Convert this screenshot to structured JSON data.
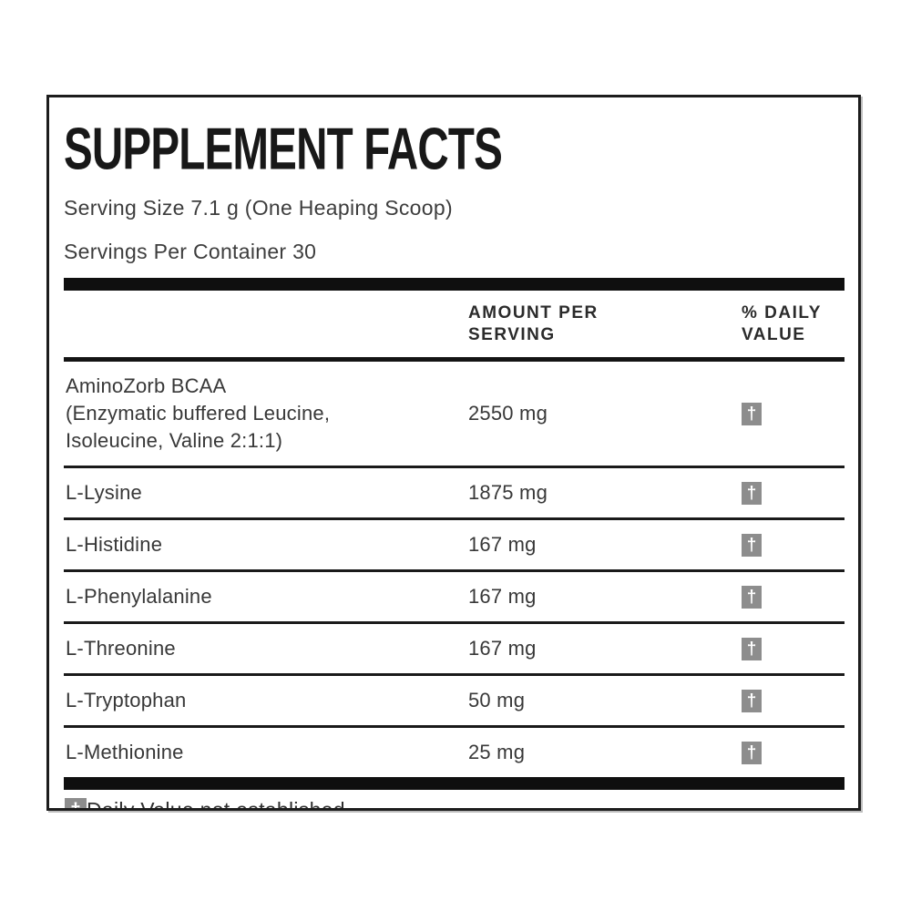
{
  "panel": {
    "title": "SUPPLEMENT FACTS",
    "serving_size": "Serving Size 7.1 g (One Heaping Scoop)",
    "servings_per_container": "Servings Per Container 30",
    "columns": {
      "amount": "AMOUNT PER\nSERVING",
      "daily_value": "% DAILY\nVALUE"
    },
    "dagger": "†",
    "footnote": "Daily Value not established.",
    "colors": {
      "text": "#3a3a3a",
      "bars": "#0f0f0f",
      "dagger_box": "#8d8d8d",
      "dagger_glyph": "#ffffff",
      "frame_border": "#1c1c1c"
    }
  },
  "rows": [
    {
      "name": "AminoZorb BCAA\n(Enzymatic buffered Leucine,\nIsoleucine, Valine 2:1:1)",
      "amount": "2550 mg",
      "daily_value": "†"
    },
    {
      "name": "L-Lysine",
      "amount": "1875 mg",
      "daily_value": "†"
    },
    {
      "name": "L-Histidine",
      "amount": "167 mg",
      "daily_value": "†"
    },
    {
      "name": "L-Phenylalanine",
      "amount": "167 mg",
      "daily_value": "†"
    },
    {
      "name": "L-Threonine",
      "amount": "167 mg",
      "daily_value": "†"
    },
    {
      "name": "L-Tryptophan",
      "amount": "50 mg",
      "daily_value": "†"
    },
    {
      "name": "L-Methionine",
      "amount": "25 mg",
      "daily_value": "†"
    }
  ]
}
